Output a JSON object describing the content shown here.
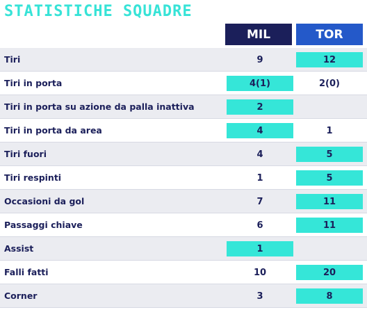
{
  "title": "STATISTICHE SQUADRE",
  "teams": {
    "home": "MIL",
    "away": "TOR"
  },
  "colors": {
    "title": "#37e3d7",
    "home_header": "#1b1f5a",
    "away_header": "#2459c9",
    "highlight": "#35e6d8",
    "text": "#1b1f5a",
    "row_alt": "#ebecf1"
  },
  "rows": [
    {
      "label": "Tiri",
      "mil": "9",
      "tor": "12",
      "highlight": "tor"
    },
    {
      "label": "Tiri in porta",
      "mil": "4(1)",
      "tor": "2(0)",
      "highlight": "mil"
    },
    {
      "label": "Tiri in porta su azione da palla inattiva",
      "mil": "2",
      "tor": "",
      "highlight": "mil"
    },
    {
      "label": "Tiri in porta da area",
      "mil": "4",
      "tor": "1",
      "highlight": "mil"
    },
    {
      "label": "Tiri fuori",
      "mil": "4",
      "tor": "5",
      "highlight": "tor"
    },
    {
      "label": "Tiri respinti",
      "mil": "1",
      "tor": "5",
      "highlight": "tor"
    },
    {
      "label": "Occasioni da gol",
      "mil": "7",
      "tor": "11",
      "highlight": "tor"
    },
    {
      "label": "Passaggi chiave",
      "mil": "6",
      "tor": "11",
      "highlight": "tor"
    },
    {
      "label": "Assist",
      "mil": "1",
      "tor": "",
      "highlight": "mil"
    },
    {
      "label": "Falli fatti",
      "mil": "10",
      "tor": "20",
      "highlight": "tor"
    },
    {
      "label": "Corner",
      "mil": "3",
      "tor": "8",
      "highlight": "tor"
    }
  ]
}
